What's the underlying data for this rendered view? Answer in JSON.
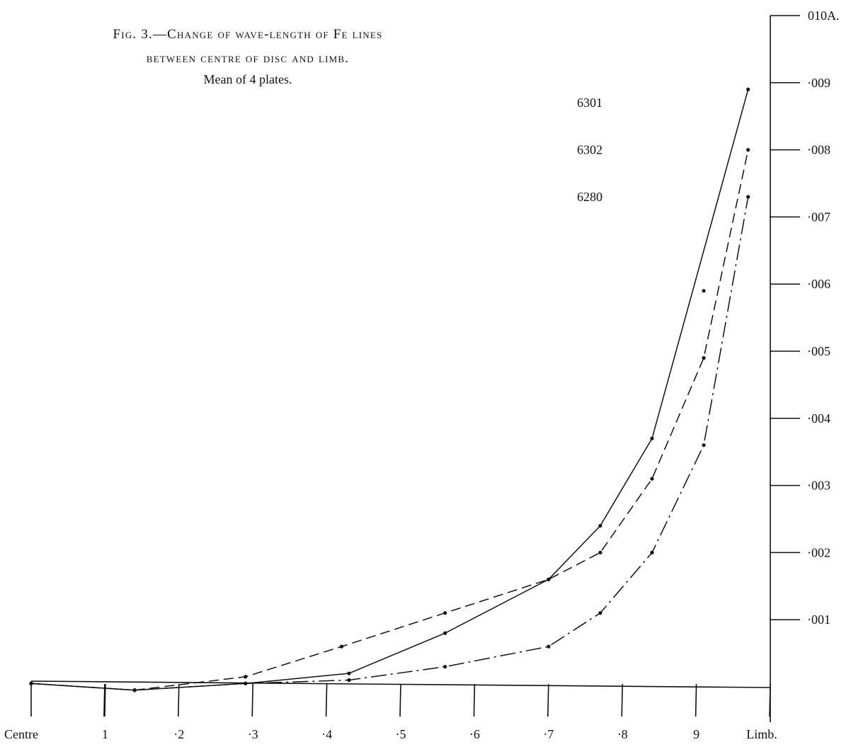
{
  "figure": {
    "title_line1": "Fig. 3.—Change of wave-length of Fe lines",
    "title_line2": "between centre of disc and limb.",
    "subtitle": "Mean of 4 plates."
  },
  "chart_data": {
    "type": "line",
    "title": "Fig. 3.—Change of wave-length of Fe lines between centre of disc and limb.",
    "subtitle": "Mean of 4 plates.",
    "x_tick_labels": [
      "Centre",
      "1",
      "·2",
      "·3",
      "·4",
      "·5",
      "·6",
      "·7",
      "·8",
      "9",
      "Limb."
    ],
    "y_tick_labels": [
      "·001",
      "·002",
      "·003",
      "·004",
      "·005",
      "·006",
      "·007",
      "·008",
      "·009",
      "010A."
    ],
    "xlim": [
      0,
      1.0
    ],
    "ylim": [
      0,
      0.01
    ],
    "axis_side": "right",
    "grid": false,
    "series": [
      {
        "name": "6301",
        "style": "solid",
        "x": [
          0,
          0.14,
          0.29,
          0.43,
          0.56,
          0.7,
          0.77,
          0.84,
          0.97
        ],
        "y": [
          5e-05,
          -5e-05,
          5e-05,
          0.0002,
          0.0008,
          0.0016,
          0.0024,
          0.0037,
          0.0089
        ]
      },
      {
        "name": "6302",
        "style": "dashed",
        "x": [
          0,
          0.14,
          0.29,
          0.42,
          0.56,
          0.7,
          0.77,
          0.84,
          0.91,
          0.97
        ],
        "y": [
          5e-05,
          -5e-05,
          0.00015,
          0.0006,
          0.0011,
          0.0016,
          0.002,
          0.0031,
          0.0049,
          0.008
        ]
      },
      {
        "name": "6280",
        "style": "dash-dot",
        "x": [
          0,
          0.14,
          0.29,
          0.43,
          0.56,
          0.7,
          0.77,
          0.84,
          0.91,
          0.97
        ],
        "y": [
          5e-05,
          -5e-05,
          5e-05,
          0.0001,
          0.0003,
          0.0006,
          0.0011,
          0.002,
          0.0036,
          0.0073
        ]
      },
      {
        "name": "6301",
        "style": "solid",
        "x": [
          0.91
        ],
        "y": [
          0.0059
        ]
      }
    ],
    "colors": {
      "ink": "#111111",
      "paper": "#ffffff"
    }
  }
}
